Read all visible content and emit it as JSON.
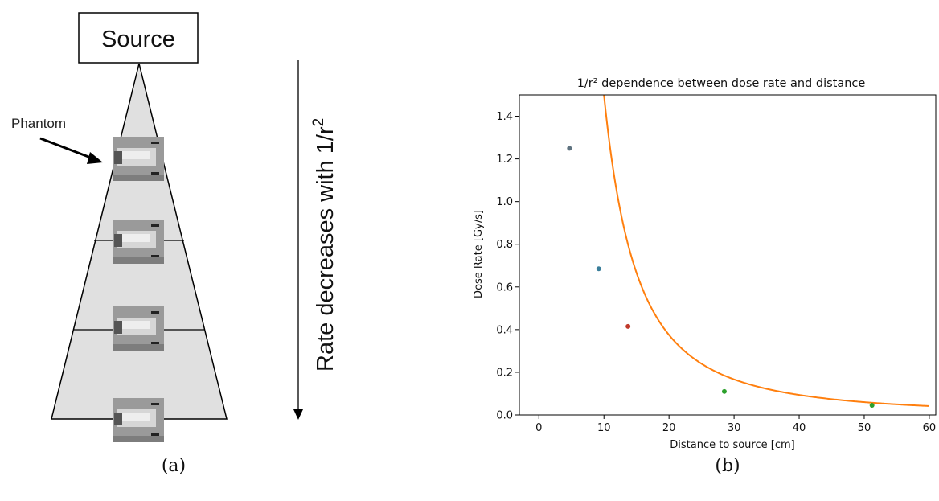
{
  "diagram": {
    "source_label": "Source",
    "phantom_label": "Phantom",
    "arrow_text_main": "Rate decreases with 1/r",
    "arrow_text_sup": "2",
    "caption": "(a)",
    "phantom_count": 4
  },
  "chart_caption": "(b)",
  "chart_data": {
    "type": "scatter",
    "title": "1/r² dependence between dose rate and distance",
    "xlabel": "Distance to source [cm]",
    "ylabel": "Dose Rate [Gy/s]",
    "xlim": [
      -3,
      61
    ],
    "ylim": [
      0,
      1.5
    ],
    "xticks": [
      0,
      10,
      20,
      30,
      40,
      50,
      60
    ],
    "yticks": [
      0.0,
      0.2,
      0.4,
      0.6,
      0.8,
      1.0,
      1.2,
      1.4
    ],
    "points": [
      {
        "x": 4.7,
        "y": 1.25,
        "color": "#5f7380"
      },
      {
        "x": 9.2,
        "y": 0.685,
        "color": "#3a7e9a"
      },
      {
        "x": 13.7,
        "y": 0.415,
        "color": "#c0392b"
      },
      {
        "x": 28.5,
        "y": 0.11,
        "color": "#2ca02c"
      },
      {
        "x": 51.2,
        "y": 0.045,
        "color": "#2ca02c"
      }
    ],
    "fit": {
      "model": "a/x^2",
      "a": 150,
      "x_start": 3.3,
      "x_end": 60,
      "color": "#ff7f0e"
    },
    "grid": false
  }
}
